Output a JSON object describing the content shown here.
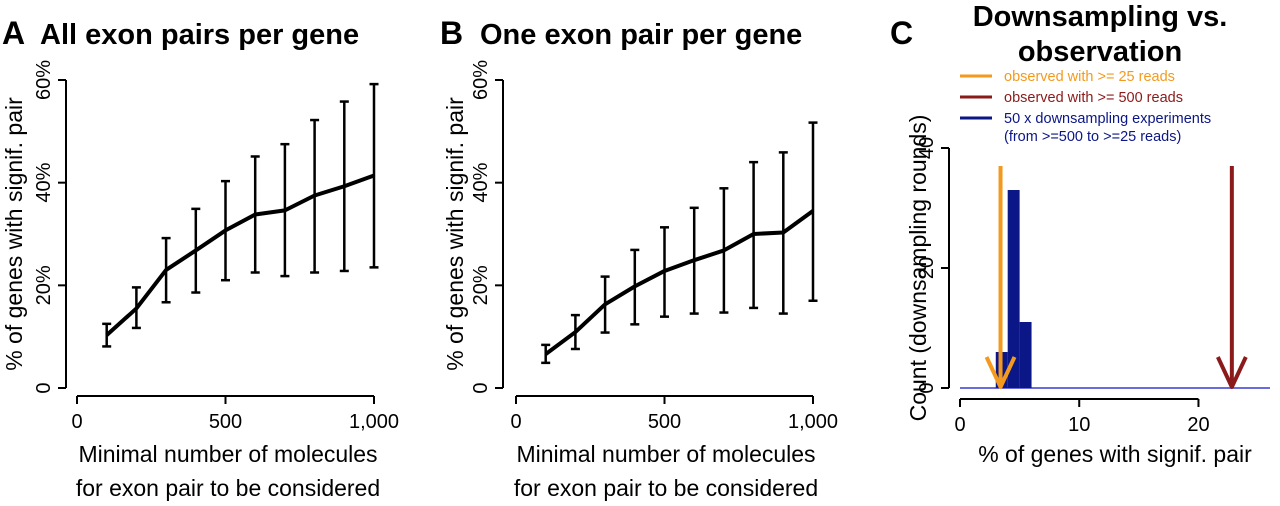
{
  "panels": {
    "a": {
      "letter": "A"
    },
    "b": {
      "letter": "B"
    },
    "c": {
      "letter": "C"
    }
  },
  "colors": {
    "line": "#000000",
    "observed_25": "#f39a1e",
    "observed_500": "#8b1a1a",
    "downsampling": "#0b1687",
    "baseline": "#3a3ad0"
  },
  "chart_data": [
    {
      "type": "line",
      "panel": "A",
      "title": "All exon pairs per gene",
      "xlabel": [
        "Minimal number of molecules",
        "for exon pair to be considered"
      ],
      "ylabel": "% of genes with signif. pair",
      "xlim": [
        0,
        1000
      ],
      "ylim": [
        0,
        60
      ],
      "x_ticks": [
        0,
        500,
        1000
      ],
      "x_tick_labels": [
        "0",
        "500",
        "1,000"
      ],
      "y_ticks": [
        0,
        20,
        40,
        60
      ],
      "y_tick_labels": [
        "0",
        "20%",
        "40%",
        "60%"
      ],
      "x": [
        100,
        200,
        300,
        400,
        500,
        600,
        700,
        800,
        900,
        1000
      ],
      "y": [
        10.3,
        15.5,
        23,
        26.8,
        30.7,
        33.8,
        34.6,
        37.5,
        39.3,
        41.4
      ],
      "err_low": [
        8.1,
        11.7,
        16.7,
        18.6,
        21,
        22.5,
        21.8,
        22.5,
        22.8,
        23.5
      ],
      "err_high": [
        12.5,
        19.6,
        29.2,
        34.9,
        40.3,
        45.1,
        47.5,
        52.2,
        55.8,
        59.2
      ]
    },
    {
      "type": "line",
      "panel": "B",
      "title": "One exon pair per gene",
      "xlabel": [
        "Minimal number of molecules",
        "for exon pair to be considered"
      ],
      "ylabel": "% of genes with signif. pair",
      "xlim": [
        0,
        1000
      ],
      "ylim": [
        0,
        60
      ],
      "x_ticks": [
        0,
        500,
        1000
      ],
      "x_tick_labels": [
        "0",
        "500",
        "1,000"
      ],
      "y_ticks": [
        0,
        20,
        40,
        60
      ],
      "y_tick_labels": [
        "0",
        "20%",
        "40%",
        "60%"
      ],
      "x": [
        100,
        200,
        300,
        400,
        500,
        600,
        700,
        800,
        900,
        1000
      ],
      "y": [
        6.6,
        10.9,
        16.3,
        19.8,
        22.8,
        24.9,
        26.8,
        30,
        30.3,
        34.5
      ],
      "err_low": [
        4.9,
        7.6,
        10.8,
        12.4,
        13.9,
        14.5,
        14.7,
        15.6,
        14.5,
        17
      ],
      "err_high": [
        8.4,
        14.2,
        21.7,
        26.9,
        31.3,
        35.1,
        38.9,
        44,
        45.9,
        51.7
      ]
    },
    {
      "type": "bar",
      "panel": "C",
      "title": [
        "Downsampling vs.",
        "observation"
      ],
      "xlabel": "% of genes with signif. pair",
      "ylabel": "Count (downsampling rounds)",
      "xlim": [
        0,
        26
      ],
      "ylim": [
        0,
        52
      ],
      "x_ticks": [
        0,
        10,
        20
      ],
      "x_tick_labels": [
        "0",
        "10",
        "20"
      ],
      "y_ticks": [
        0,
        20,
        40
      ],
      "y_tick_labels": [
        "0",
        "20",
        "40"
      ],
      "bins": [
        {
          "x0": 3,
          "x1": 4,
          "count": 6
        },
        {
          "x0": 4,
          "x1": 5,
          "count": 33
        },
        {
          "x0": 5,
          "x1": 6,
          "count": 11
        }
      ],
      "markers": [
        {
          "label": "observed with >= 25 reads",
          "x": 3.4,
          "color": "#f39a1e"
        },
        {
          "label": "observed with >= 500 reads",
          "x": 22.8,
          "color": "#8b1a1a"
        }
      ],
      "legend": [
        {
          "label": "observed with >= 25 reads",
          "color": "#f39a1e"
        },
        {
          "label": "observed with >= 500 reads",
          "color": "#8b1a1a"
        },
        {
          "label": "50 x downsampling experiments",
          "label2": "(from >=500 to >=25 reads)",
          "color": "#0b1687"
        }
      ],
      "legend_position": "top-left"
    }
  ]
}
